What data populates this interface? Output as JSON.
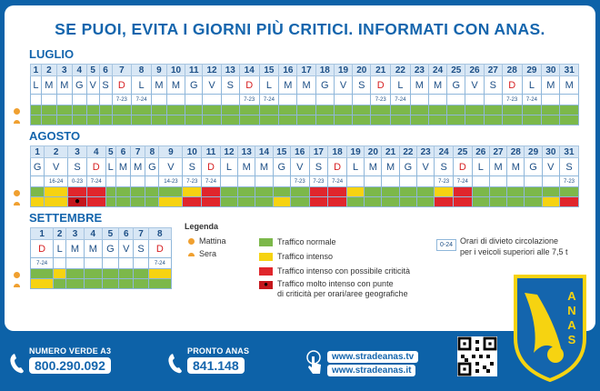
{
  "title": "SE PUOI, EVITA I GIORNI PIÙ CRITICI. INFORMATI CON ANAS.",
  "colors": {
    "green": "#7cb84a",
    "yellow": "#f6d311",
    "red": "#e0262c",
    "darkred": "#c4161c",
    "blue": "#1465ad"
  },
  "months": [
    {
      "name": "LUGLIO",
      "days": [
        "L",
        "M",
        "M",
        "G",
        "V",
        "S",
        "D",
        "L",
        "M",
        "M",
        "G",
        "V",
        "S",
        "D",
        "L",
        "M",
        "M",
        "G",
        "V",
        "S",
        "D",
        "L",
        "M",
        "M",
        "G",
        "V",
        "S",
        "D",
        "L",
        "M",
        "M"
      ],
      "bans": {
        "7": "7-23",
        "8": "7-24",
        "14": "7-23",
        "15": "7-24",
        "21": "7-23",
        "22": "7-24",
        "28": "7-23",
        "29": "7-24"
      },
      "morning": [
        "g",
        "g",
        "g",
        "g",
        "g",
        "g",
        "g",
        "g",
        "g",
        "g",
        "g",
        "g",
        "g",
        "g",
        "g",
        "g",
        "g",
        "g",
        "g",
        "g",
        "g",
        "g",
        "g",
        "g",
        "g",
        "g",
        "g",
        "g",
        "g",
        "g",
        "g"
      ],
      "evening": [
        "g",
        "g",
        "g",
        "g",
        "g",
        "g",
        "g",
        "g",
        "g",
        "g",
        "g",
        "g",
        "g",
        "g",
        "g",
        "g",
        "g",
        "g",
        "g",
        "g",
        "g",
        "g",
        "g",
        "g",
        "g",
        "g",
        "g",
        "g",
        "g",
        "g",
        "g"
      ]
    },
    {
      "name": "AGOSTO",
      "days": [
        "G",
        "V",
        "S",
        "D",
        "L",
        "M",
        "M",
        "G",
        "V",
        "S",
        "D",
        "L",
        "M",
        "M",
        "G",
        "V",
        "S",
        "D",
        "L",
        "M",
        "M",
        "G",
        "V",
        "S",
        "D",
        "L",
        "M",
        "M",
        "G",
        "V",
        "S"
      ],
      "bans": {
        "2": "16-24",
        "3": "0-23",
        "4": "7-24",
        "9": "14-23",
        "10": "7-23",
        "11": "7-24",
        "16": "7-23",
        "17": "7-23",
        "18": "7-24",
        "24": "7-23",
        "25": "7-24",
        "31": "7-23"
      },
      "morning": [
        "g",
        "y",
        "r",
        "r",
        "g",
        "g",
        "g",
        "g",
        "g",
        "y",
        "r",
        "g",
        "g",
        "g",
        "g",
        "g",
        "r",
        "r",
        "y",
        "g",
        "g",
        "g",
        "g",
        "y",
        "r",
        "g",
        "g",
        "g",
        "g",
        "g",
        "g"
      ],
      "evening": [
        "y",
        "y",
        "k",
        "r",
        "g",
        "g",
        "g",
        "g",
        "y",
        "r",
        "r",
        "g",
        "g",
        "g",
        "y",
        "g",
        "r",
        "r",
        "g",
        "g",
        "g",
        "g",
        "g",
        "r",
        "r",
        "g",
        "g",
        "g",
        "g",
        "y",
        "r"
      ]
    },
    {
      "name": "SETTEMBRE",
      "days": [
        "D",
        "L",
        "M",
        "M",
        "G",
        "V",
        "S",
        "D"
      ],
      "bans": {
        "1": "7-24",
        "8": "7-24"
      },
      "morning": [
        "g",
        "y",
        "g",
        "g",
        "g",
        "g",
        "g",
        "y"
      ],
      "evening": [
        "y",
        "g",
        "g",
        "g",
        "g",
        "g",
        "g",
        "g"
      ]
    }
  ],
  "legend": {
    "title": "Legenda",
    "morning": "Mattina",
    "evening": "Sera",
    "normal": "Traffico normale",
    "intense": "Traffico intenso",
    "critical": "Traffico intenso con possibile criticità",
    "very_critical": "Traffico molto intenso con punte",
    "very_critical_2": "di criticità per orari/aree geografiche",
    "ban_sample": "0-24",
    "ban_text_1": "Orari di divieto circolazione",
    "ban_text_2": "per i veicoli superiori alle 7,5 t"
  },
  "footer": {
    "verde_label": "NUMERO VERDE A3",
    "verde_number": "800.290.092",
    "pronto_label": "PRONTO ANAS",
    "pronto_number": "841.148",
    "url_tv": "www.stradeanas.tv",
    "url_it": "www.stradeanas.it"
  },
  "logo_text": "ANAS"
}
